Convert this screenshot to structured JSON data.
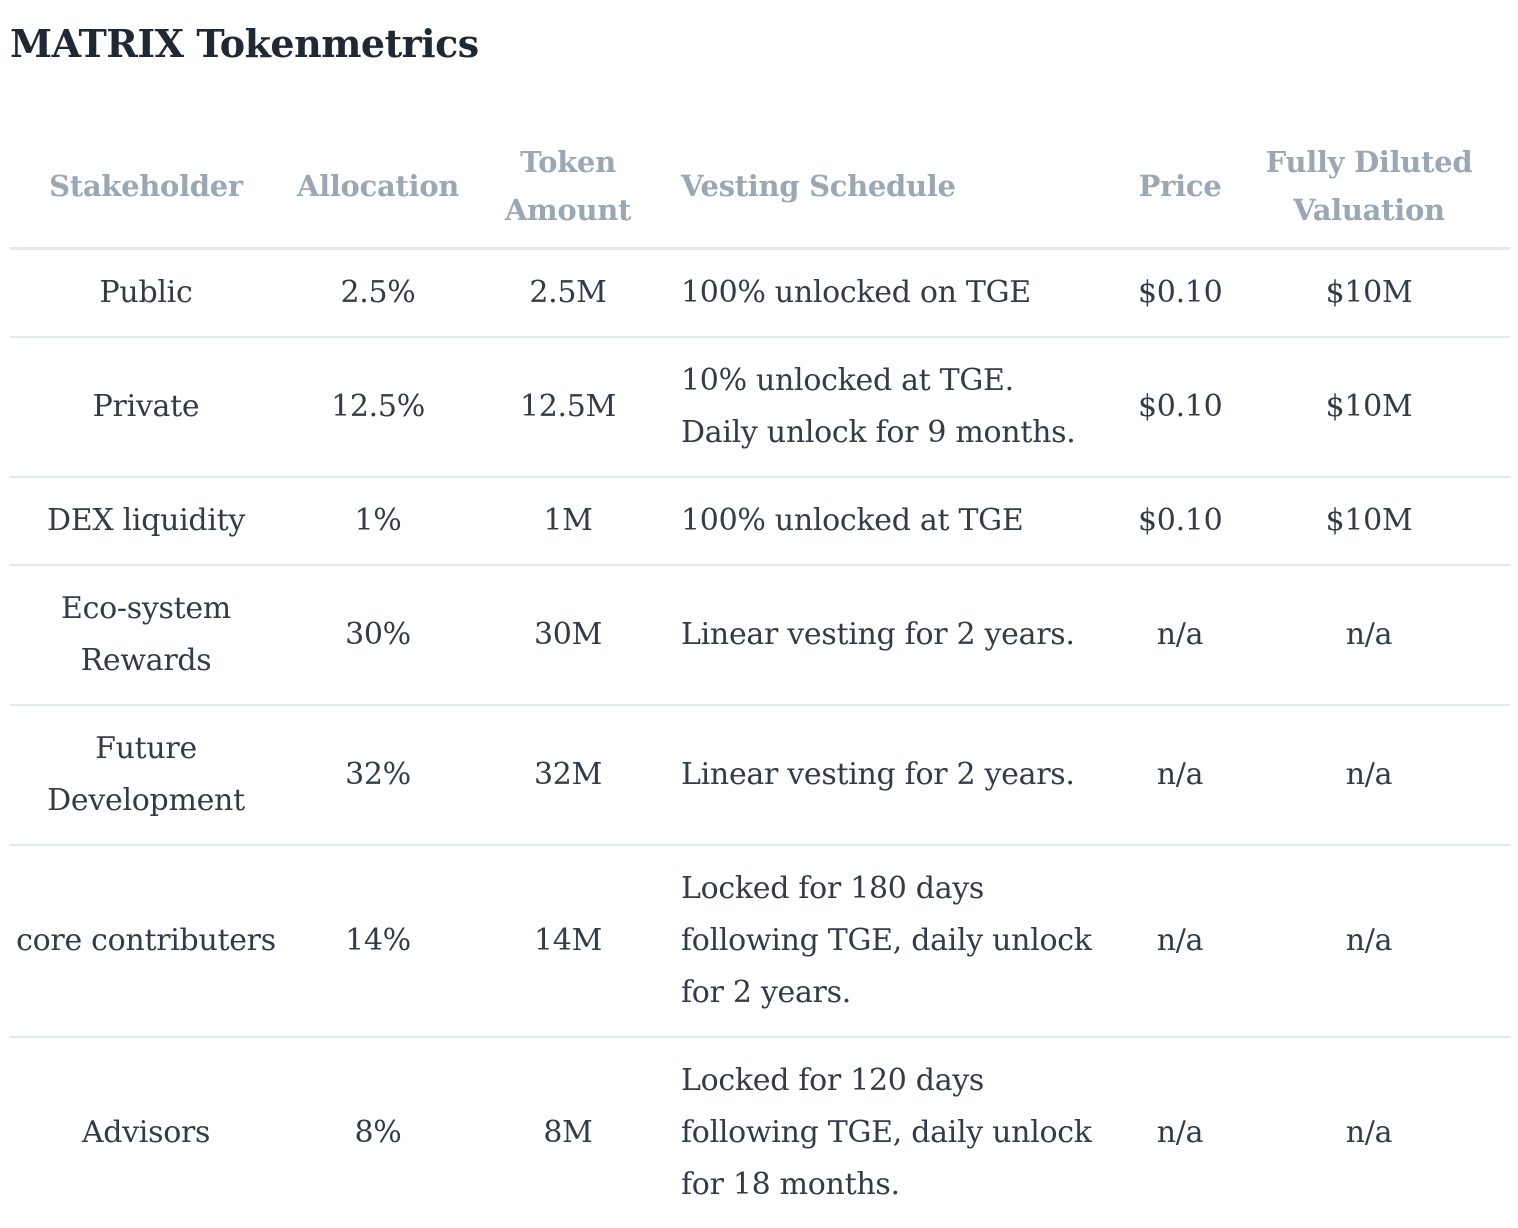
{
  "title": "MATRIX Tokenmetrics",
  "table": {
    "headers": {
      "stakeholder": "Stakeholder",
      "allocation": "Allocation",
      "token_amount": "Token Amount",
      "vesting_schedule": "Vesting Schedule",
      "price": "Price",
      "fdv": "Fully Diluted Valuation"
    },
    "rows": [
      {
        "stakeholder": "Public",
        "allocation": "2.5%",
        "token_amount": "2.5M",
        "vesting_schedule": "100% unlocked on TGE",
        "price": "$0.10",
        "fdv": "$10M"
      },
      {
        "stakeholder": "Private",
        "allocation": "12.5%",
        "token_amount": "12.5M",
        "vesting_schedule": "10% unlocked at TGE.",
        "vesting_schedule_2": "Daily unlock for 9 months.",
        "price": "$0.10",
        "fdv": "$10M"
      },
      {
        "stakeholder": "DEX liquidity",
        "allocation": "1%",
        "token_amount": "1M",
        "vesting_schedule": "100% unlocked at TGE",
        "price": "$0.10",
        "fdv": "$10M"
      },
      {
        "stakeholder": "Eco-system Rewards",
        "allocation": "30%",
        "token_amount": "30M",
        "vesting_schedule": "Linear vesting for 2 years.",
        "price": "n/a",
        "fdv": "n/a"
      },
      {
        "stakeholder": "Future Development",
        "allocation": "32%",
        "token_amount": "32M",
        "vesting_schedule": "Linear vesting for 2 years.",
        "price": "n/a",
        "fdv": "n/a"
      },
      {
        "stakeholder": "core contributers",
        "allocation": "14%",
        "token_amount": "14M",
        "vesting_schedule": "Locked for 180 days following TGE, daily unlock for 2 years.",
        "price": "n/a",
        "fdv": "n/a"
      },
      {
        "stakeholder": "Advisors",
        "allocation": "8%",
        "token_amount": "8M",
        "vesting_schedule": "Locked for 120 days following TGE, daily unlock for 18 months.",
        "price": "n/a",
        "fdv": "n/a"
      }
    ]
  }
}
